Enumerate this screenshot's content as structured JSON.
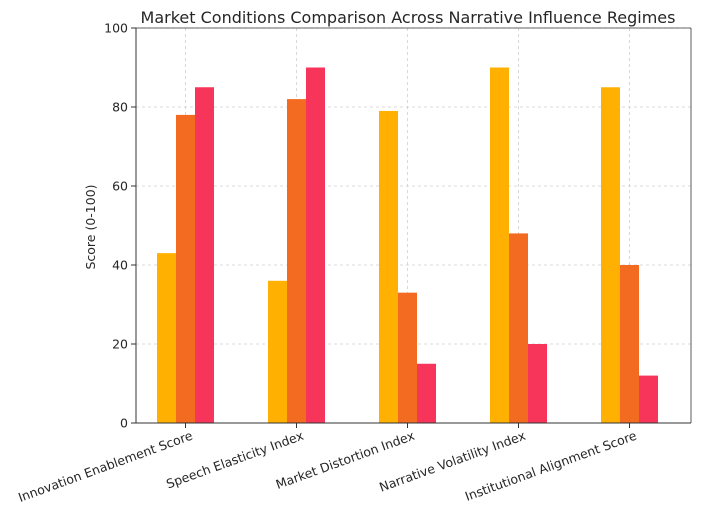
{
  "chart_data": {
    "type": "bar",
    "title": "Market Conditions Comparison Across Narrative Influence Regimes",
    "xlabel": "",
    "ylabel": "Score (0-100)",
    "ylim": [
      0,
      100
    ],
    "yticks": [
      0,
      20,
      40,
      60,
      80,
      100
    ],
    "grid": true,
    "legend": "none",
    "categories": [
      "Innovation Enablement Score",
      "Speech Elasticity Index",
      "Market Distortion Index",
      "Narrative Volatility Index",
      "Institutional Alignment Score"
    ],
    "series": [
      {
        "color": "#FFB000",
        "values": [
          43,
          36,
          79,
          90,
          85
        ]
      },
      {
        "color": "#F36B21",
        "values": [
          78,
          82,
          33,
          48,
          40
        ]
      },
      {
        "color": "#F7345A",
        "values": [
          85,
          90,
          15,
          20,
          12
        ]
      }
    ]
  }
}
